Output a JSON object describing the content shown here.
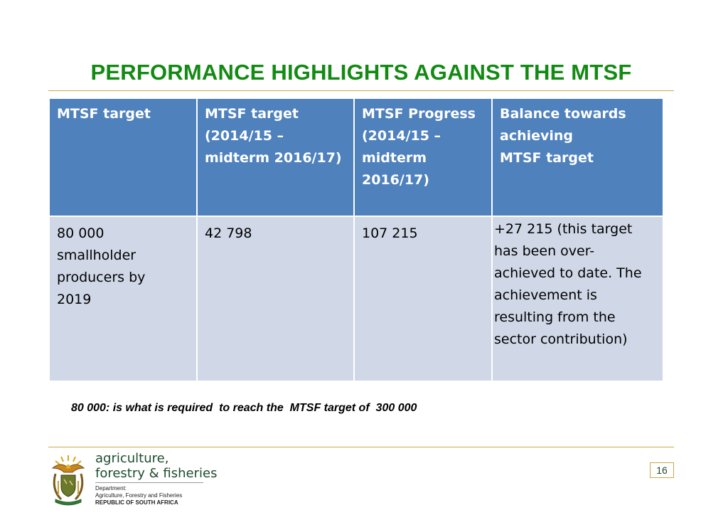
{
  "slide": {
    "title": "PERFORMANCE HIGHLIGHTS AGAINST THE MTSF",
    "page_number": "16"
  },
  "table": {
    "headers": [
      "MTSF target",
      "MTSF target\n(2014/15 –\nmidterm 2016/17)",
      "MTSF Progress\n(2014/15 –\nmidterm\n2016/17)",
      "Balance towards\nachieving\nMTSF target"
    ],
    "rows": [
      [
        "80 000\nsmallholder\nproducers by\n2019",
        "42 798",
        "107 215",
        "+27 215 (this target\nhas been over-\nachieved to date. The\nachievement is\nresulting from the\nsector contribution)"
      ]
    ]
  },
  "note": "80 000: is what is required  to reach the  MTSF target of  300 000",
  "footer": {
    "brand_line1": "agriculture,",
    "brand_line2": "forestry & fisheries",
    "dept_line1": "Department:",
    "dept_line2": "Agriculture, Forestry and Fisheries",
    "dept_line3": "REPUBLIC OF SOUTH AFRICA",
    "logo_icon": "coat-of-arms-icon"
  },
  "colors": {
    "title": "#138a13",
    "header_fill": "#4f81bd",
    "body_fill": "#d0d8e8",
    "rule": "#c8a94a"
  }
}
